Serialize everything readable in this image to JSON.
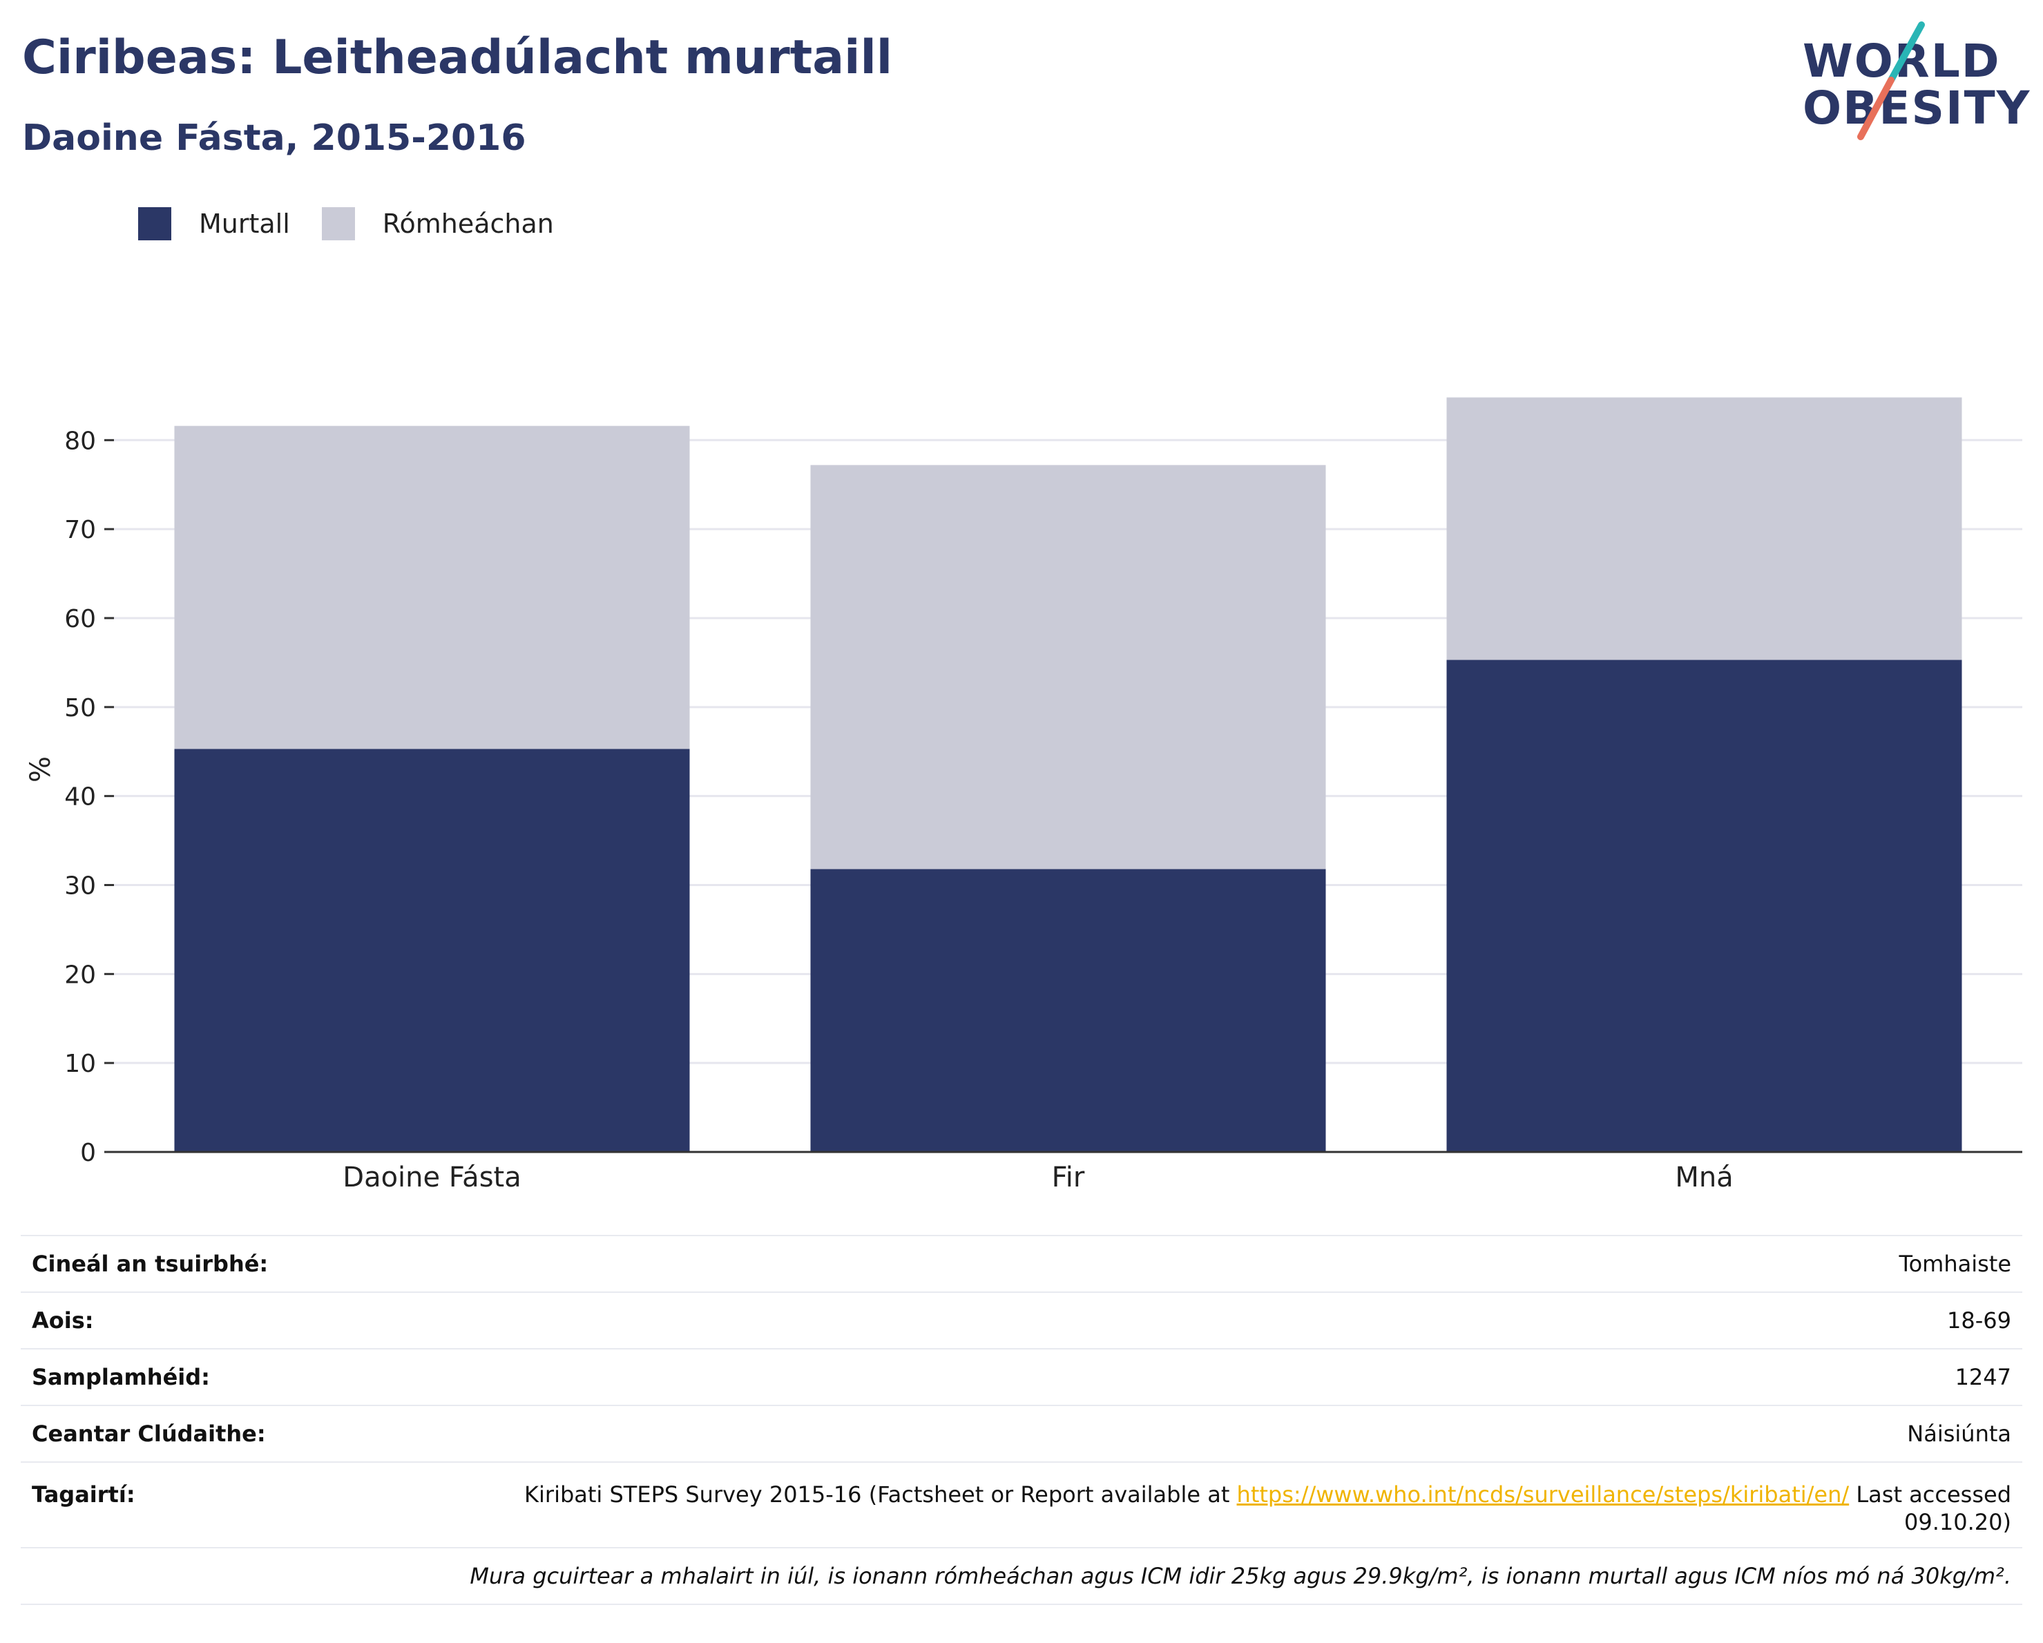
{
  "header": {
    "title": "Ciribeas: Leitheadúlacht murtaill",
    "subtitle": "Daoine Fásta, 2015-2016"
  },
  "logo": {
    "line1": "WORLD",
    "line2": "OBESITY",
    "accent_colors": [
      "#2ab5b5",
      "#e8705a"
    ]
  },
  "colors": {
    "obese": "#2b3766",
    "overweight": "#cacbd7",
    "link": "#f0b400",
    "gridline": "#e6e6ee",
    "axis": "#333333"
  },
  "chart_data": {
    "type": "bar",
    "stacked": true,
    "categories": [
      "Daoine Fásta",
      "Fir",
      "Mná"
    ],
    "series": [
      {
        "name": "Murtall",
        "values": [
          45.3,
          31.8,
          55.3
        ]
      },
      {
        "name": "Rómheáchan",
        "values": [
          36.3,
          45.4,
          29.5
        ]
      }
    ],
    "ylabel": "%",
    "ylim": [
      0,
      86
    ],
    "yticks": [
      0,
      10,
      20,
      30,
      40,
      50,
      60,
      70,
      80
    ],
    "grid": true,
    "legend_position": "top-left"
  },
  "info": {
    "rows": [
      {
        "label": "Cineál an tsuirbhé:",
        "value": "Tomhaiste"
      },
      {
        "label": "Aois:",
        "value": "18-69"
      },
      {
        "label": "Samplamhéid:",
        "value": "1247"
      },
      {
        "label": "Ceantar Clúdaithe:",
        "value": "Náisiúnta"
      }
    ],
    "reference": {
      "label": "Tagairtí:",
      "text_before": "Kiribati STEPS Survey 2015-16 (Factsheet or Report available at ",
      "link": "https://www.who.int/ncds/surveillance/steps/kiribati/en/",
      "text_after": " Last accessed 09.10.20)"
    },
    "note": "Mura gcuirtear a mhalairt in iúl, is ionann rómheáchan agus ICM idir 25kg agus 29.9kg/m², is ionann murtall agus ICM níos mó ná 30kg/m²."
  }
}
